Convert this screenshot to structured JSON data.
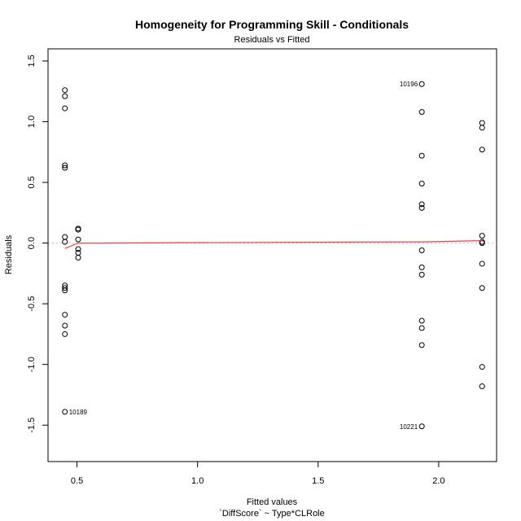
{
  "chart_data": {
    "type": "scatter",
    "title": "Homogeneity for Programming Skill - Conditionals",
    "subtitle": "Residuals vs Fitted",
    "xlabel": "Fitted values",
    "xlabel2": "`DiffScore` ~ Type*CLRole",
    "ylabel": "Residuals",
    "xlim": [
      0.38,
      2.24
    ],
    "ylim": [
      -1.8,
      1.6
    ],
    "x_ticks": [
      0.5,
      1.0,
      1.5,
      2.0
    ],
    "x_tick_labels": [
      "0.5",
      "1.0",
      "1.5",
      "2.0"
    ],
    "y_ticks": [
      -1.5,
      -1.0,
      -0.5,
      0.0,
      0.5,
      1.0,
      1.5
    ],
    "y_tick_labels": [
      "-1.5",
      "-1.0",
      "-0.5",
      "0.0",
      "0.5",
      "1.0",
      "1.5"
    ],
    "grid": false,
    "reference_line": 0,
    "groups": [
      {
        "x": 0.45,
        "residuals": [
          1.26,
          1.21,
          1.11,
          0.64,
          0.62,
          0.05,
          0.01,
          -0.35,
          -0.37,
          -0.39,
          -0.59,
          -0.68,
          -0.75,
          -1.39
        ]
      },
      {
        "x": 0.505,
        "residuals": [
          0.12,
          0.11,
          0.03,
          -0.05,
          -0.08,
          -0.12
        ]
      },
      {
        "x": 1.93,
        "residuals": [
          1.31,
          1.08,
          0.72,
          0.49,
          0.32,
          0.29,
          -0.06,
          -0.2,
          -0.26,
          -0.64,
          -0.7,
          -0.84,
          -1.51
        ]
      },
      {
        "x": 2.18,
        "residuals": [
          0.99,
          0.95,
          0.77,
          0.06,
          0.01,
          0.0,
          -0.17,
          -0.37,
          -1.02,
          -1.18
        ]
      }
    ],
    "labeled_points": [
      {
        "label": "10196",
        "x": 1.93,
        "y": 1.31,
        "side": "left"
      },
      {
        "label": "10189",
        "x": 0.45,
        "y": -1.39,
        "side": "right"
      },
      {
        "label": "10221",
        "x": 1.93,
        "y": -1.51,
        "side": "left"
      }
    ],
    "smoother": {
      "color": "#ff3b3b",
      "x": [
        0.45,
        0.505,
        1.93,
        2.18
      ],
      "y": [
        -0.045,
        0.0,
        0.01,
        0.02
      ]
    }
  }
}
